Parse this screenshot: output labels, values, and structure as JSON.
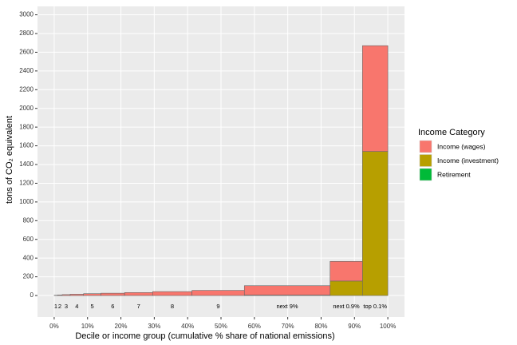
{
  "chart_data": {
    "type": "bar",
    "x_label": "Decile or income group (cumulative % share of national emissions)",
    "y_label": "tons of CO₂ equivalent",
    "legend_title": "Income Category",
    "legend_position": "right",
    "grid": true,
    "categories": [
      "1",
      "2",
      "3",
      "4",
      "5",
      "6",
      "7",
      "8",
      "9",
      "next 9%",
      "next 0.9%",
      "top 0.1%"
    ],
    "bins": [
      0,
      1.0,
      2.4,
      4.8,
      8.8,
      14.0,
      21.1,
      29.5,
      41.3,
      57.0,
      82.7,
      92.4,
      100
    ],
    "series": [
      {
        "name": "Income (wages)",
        "color": "#F8766D",
        "values": [
          3,
          6,
          10,
          14,
          20,
          25,
          32,
          42,
          55,
          100,
          210,
          1130
        ]
      },
      {
        "name": "Income (investment)",
        "color": "#B79F00",
        "values": [
          0,
          0,
          0,
          0,
          0,
          0,
          0,
          0,
          0,
          5,
          155,
          1540
        ]
      },
      {
        "name": "Retirement",
        "color": "#00BA38",
        "values": [
          0,
          0,
          0,
          0,
          0,
          0,
          0,
          0,
          0,
          0,
          0,
          0
        ]
      }
    ],
    "xlim": [
      -5,
      105
    ],
    "xticks": [
      {
        "value": 0,
        "label": "0%"
      },
      {
        "value": 10,
        "label": "10%"
      },
      {
        "value": 20,
        "label": "20%"
      },
      {
        "value": 30,
        "label": "30%"
      },
      {
        "value": 40,
        "label": "40%"
      },
      {
        "value": 50,
        "label": "50%"
      },
      {
        "value": 60,
        "label": "60%"
      },
      {
        "value": 70,
        "label": "70%"
      },
      {
        "value": 80,
        "label": "80%"
      },
      {
        "value": 90,
        "label": "90%"
      },
      {
        "value": 100,
        "label": "100%"
      }
    ],
    "ylim": [
      -230,
      3090
    ],
    "yticks": [
      0,
      200,
      400,
      600,
      800,
      1000,
      1200,
      1400,
      1600,
      1800,
      2000,
      2200,
      2400,
      2600,
      2800,
      3000
    ]
  }
}
